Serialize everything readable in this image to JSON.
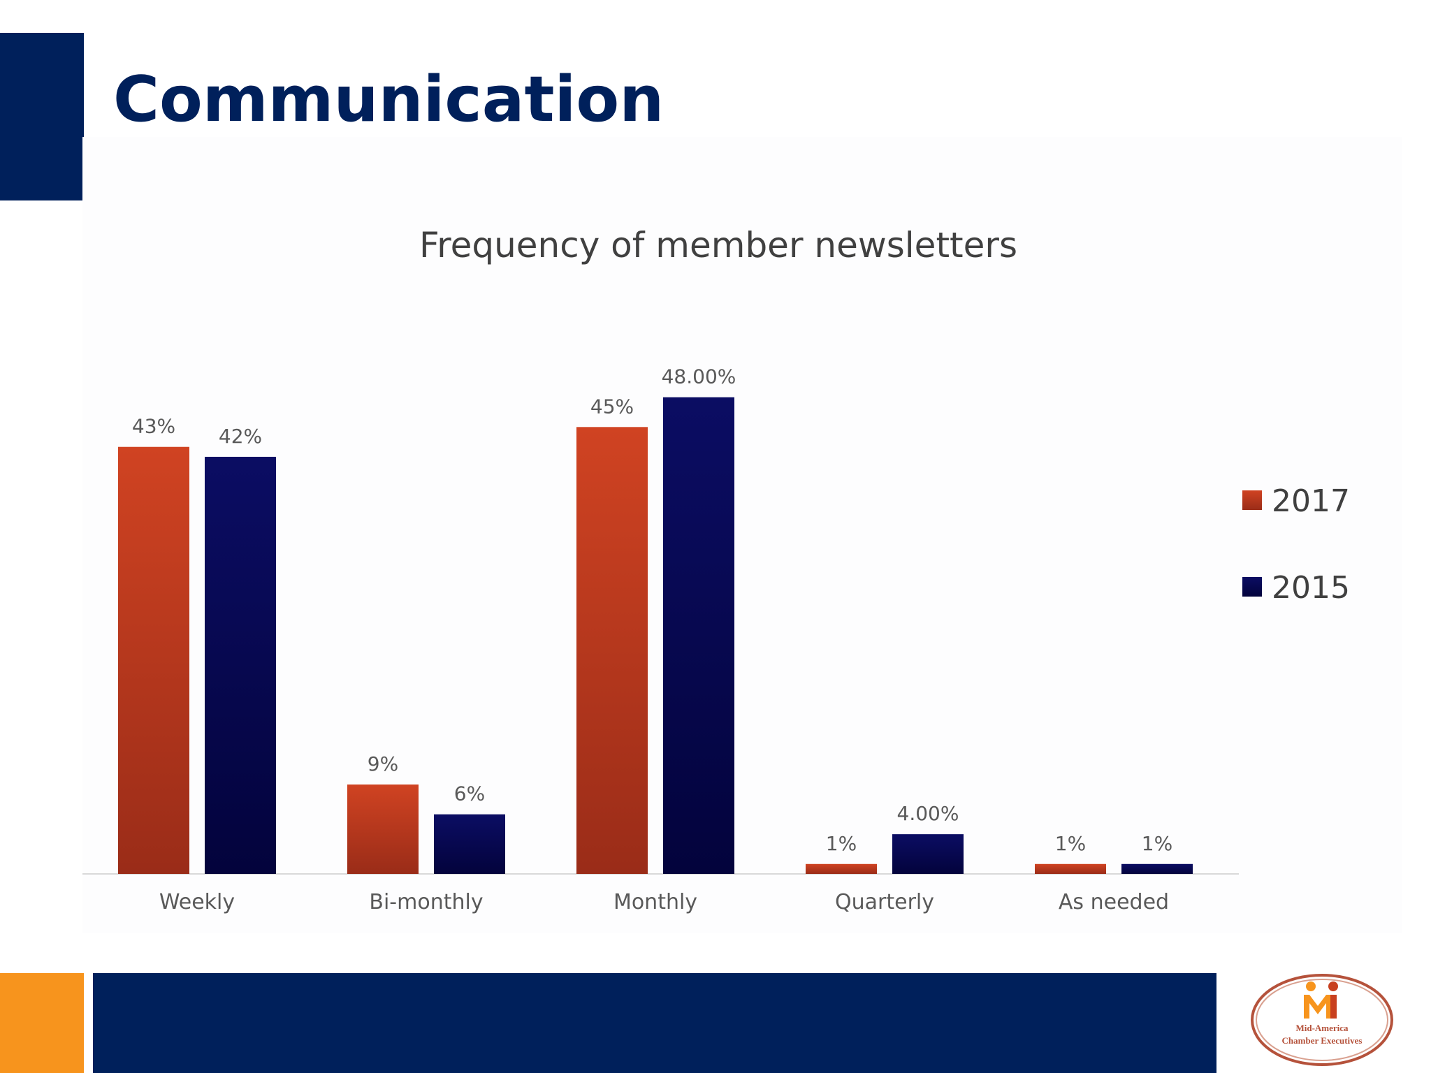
{
  "slide": {
    "title": "Communication"
  },
  "colors": {
    "navy": "#00205b",
    "orange": "#f7941d",
    "series_2017": "#c8401f",
    "series_2015": "#0a0a5c"
  },
  "chart_data": {
    "type": "bar",
    "title": "Frequency of member newsletters",
    "xlabel": "",
    "ylabel": "",
    "ylim": [
      0,
      60
    ],
    "grid": false,
    "legend_position": "right",
    "categories": [
      "Weekly",
      "Bi-monthly",
      "Monthly",
      "Quarterly",
      "As needed"
    ],
    "series": [
      {
        "name": "2017",
        "values": [
          43,
          9,
          45,
          1,
          1
        ],
        "labels": [
          "43%",
          "9%",
          "45%",
          "1%",
          "1%"
        ]
      },
      {
        "name": "2015",
        "values": [
          42,
          6,
          48,
          4,
          1
        ],
        "labels": [
          "42%",
          "6%",
          "48.00%",
          "4.00%",
          "1%"
        ]
      }
    ]
  },
  "logo": {
    "icon": "mace-logo",
    "text_line1": "Mid-America",
    "text_line2": "Chamber Executives"
  }
}
